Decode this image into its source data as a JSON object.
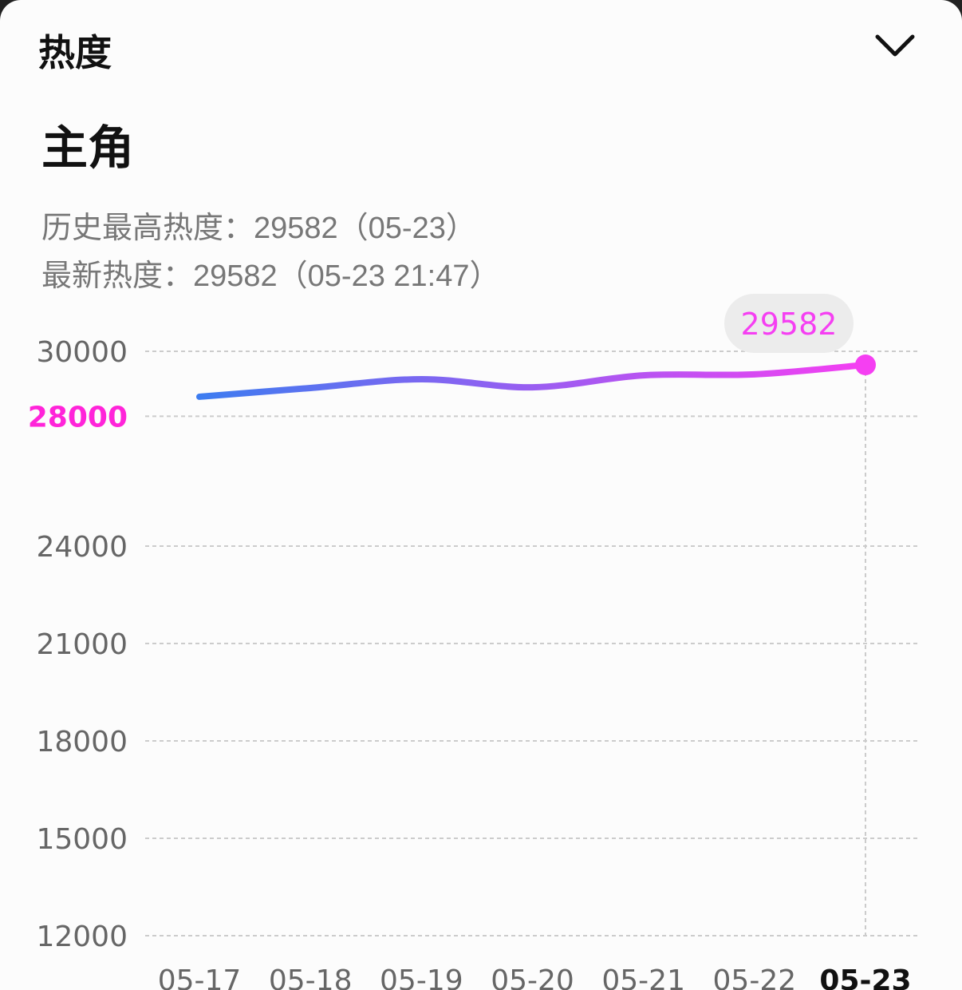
{
  "header": {
    "title": "热度"
  },
  "info": {
    "name": "主角",
    "history_high": "历史最高热度：29582（05-23）",
    "latest": "最新热度：29582（05-23 21:47）"
  },
  "chart_data": {
    "type": "line",
    "categories": [
      "05-17",
      "05-18",
      "05-19",
      "05-20",
      "05-21",
      "05-22",
      "05-23"
    ],
    "values": [
      28600,
      28870,
      29140,
      28890,
      29260,
      29290,
      29582
    ],
    "color_start": "#3d7cf0",
    "color_end": "#f53ff2",
    "highlight_color": "#ff24d9",
    "ylim": [
      12000,
      30000
    ],
    "yticks": [
      12000,
      15000,
      18000,
      21000,
      24000,
      28000,
      30000
    ],
    "grid": true
  }
}
